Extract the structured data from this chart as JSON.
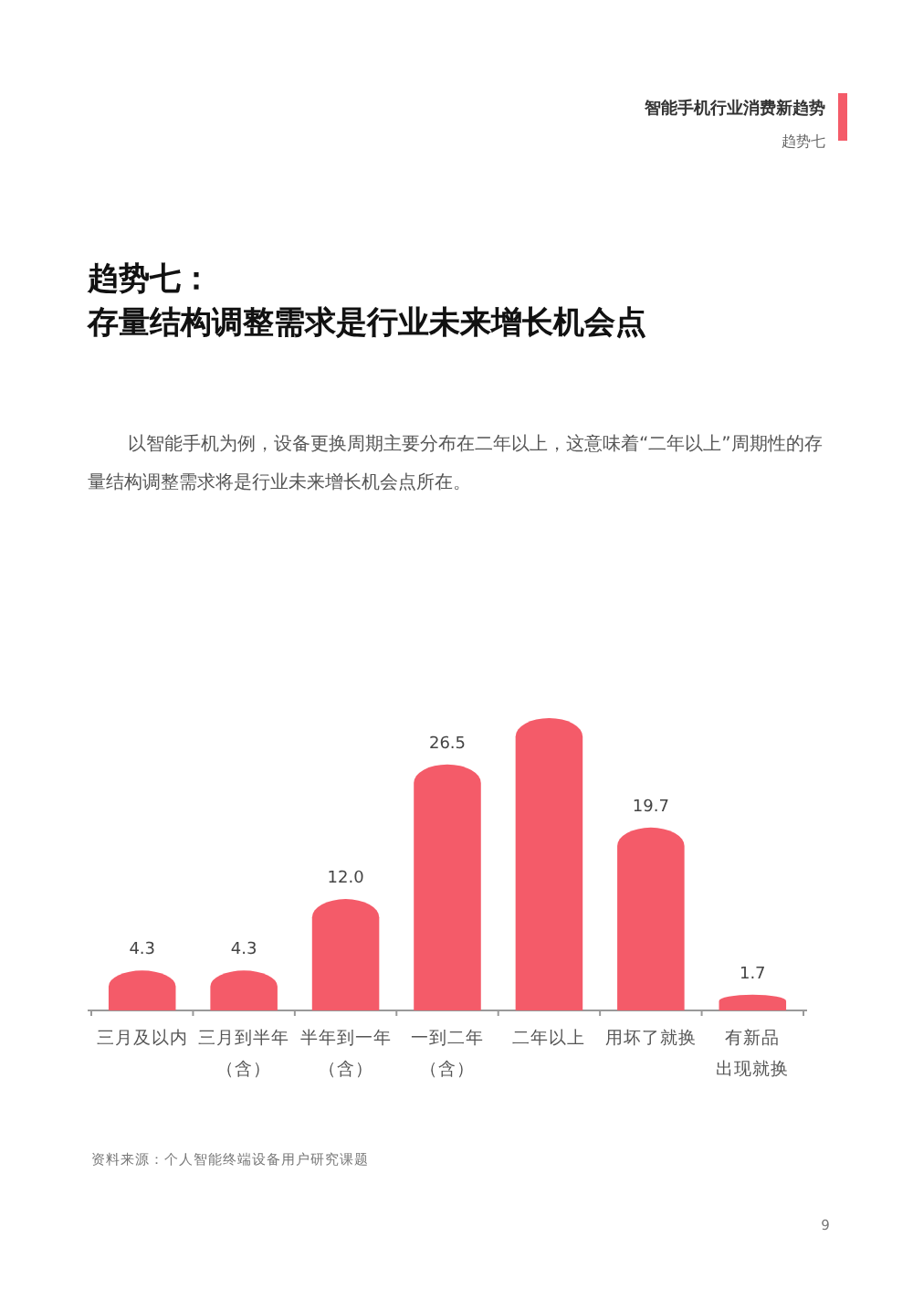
{
  "chart_data": {
    "type": "bar",
    "title": "趋势七：",
    "subtitle": "存量结构调整需求是行业未来增长机会点",
    "categories": [
      "三月及以内",
      "三月到半年（含）",
      "半年到一年（含）",
      "一到二年（含）",
      "二年以上",
      "用坏了就换",
      "有新品出现就换"
    ],
    "values": [
      4.3,
      4.3,
      12.0,
      26.5,
      31.5,
      19.7,
      1.7
    ],
    "value_labels": [
      "4.3",
      "4.3",
      "12.0",
      "26.5",
      null,
      "19.7",
      "1.7"
    ],
    "color": "#f45b69",
    "annotations": [
      "智能手机行业消费新趋势",
      "趋势七",
      "以智能手机为例，设备更换周期主要分布在二年以上，这意味着“二年以上”周期性的存量结构调整需求将是行业未来增长机会点所在。",
      "资料来源：个人智能终端设备用户研究课题",
      "9"
    ]
  }
}
